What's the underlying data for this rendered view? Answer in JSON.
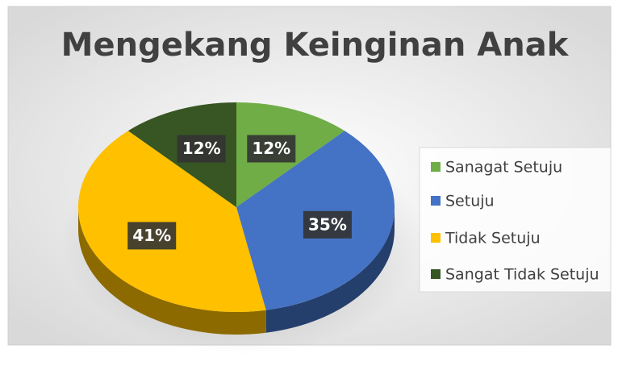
{
  "chart_data": {
    "type": "pie",
    "title": "Mengekang Keinginan Anak",
    "categories": [
      "Sanagat Setuju",
      "Setuju",
      "Tidak Setuju",
      "Sangat Tidak Setuju"
    ],
    "values": [
      12,
      35,
      41,
      12
    ],
    "value_labels": [
      "12%",
      "35%",
      "41%",
      "12%"
    ],
    "colors": [
      "#70ad47",
      "#4472c4",
      "#ffc000",
      "#375623"
    ],
    "legend": "right"
  }
}
